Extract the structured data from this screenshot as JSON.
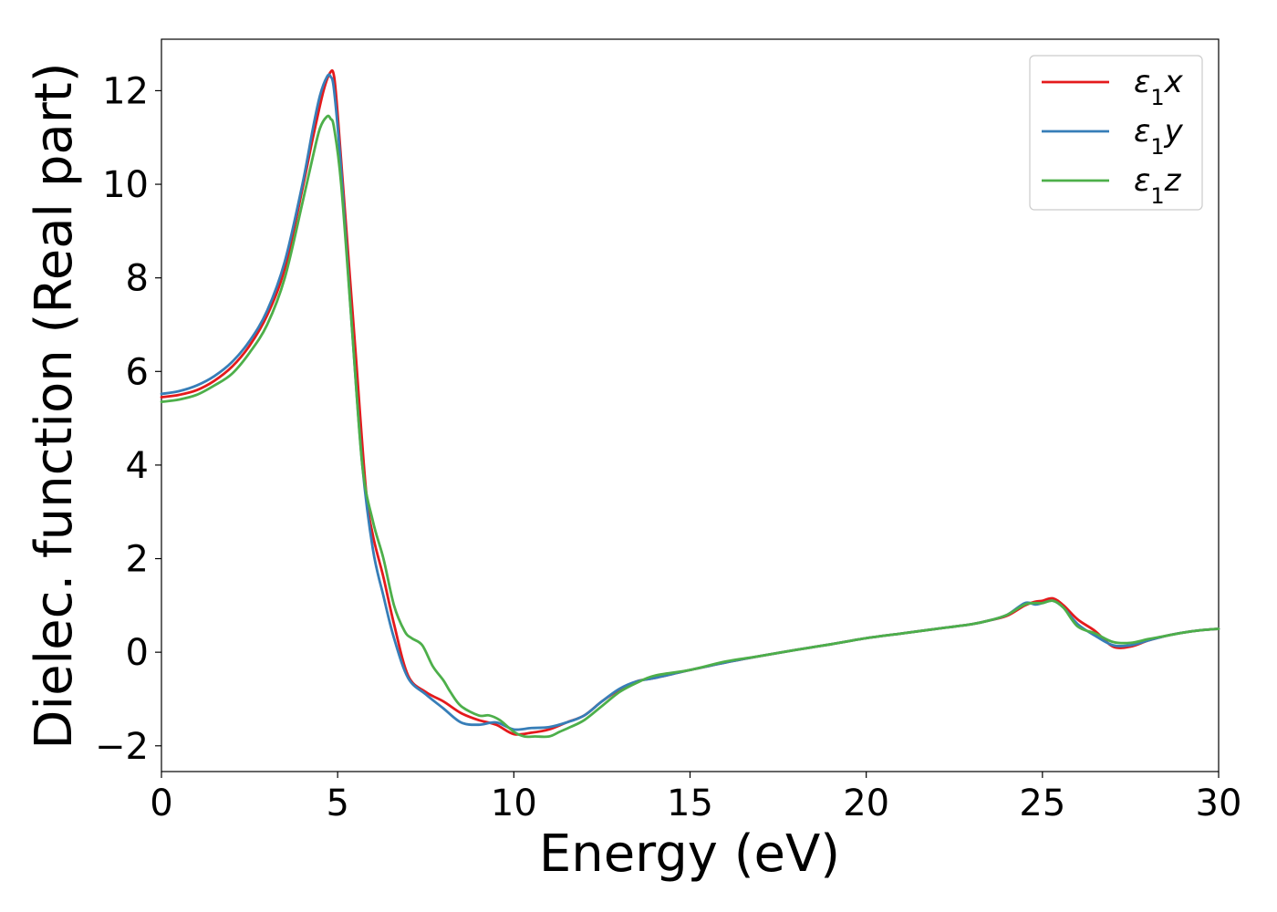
{
  "chart_data": {
    "type": "line",
    "xlabel": "Energy (eV)",
    "ylabel": "Dielec. function (Real part)",
    "xlim": [
      0,
      30
    ],
    "ylim": [
      -2.55,
      13.1
    ],
    "xticks": [
      0,
      5,
      10,
      15,
      20,
      25,
      30
    ],
    "yticks": [
      -2,
      0,
      2,
      4,
      6,
      8,
      10,
      12
    ],
    "xtick_labels": [
      "0",
      "5",
      "10",
      "15",
      "20",
      "25",
      "30"
    ],
    "ytick_labels": [
      "−2",
      "0",
      "2",
      "4",
      "6",
      "8",
      "10",
      "12"
    ],
    "grid": false,
    "legend_position": "top-right",
    "series": [
      {
        "name": "ε1x",
        "legend": {
          "base": "ε",
          "sub": "1",
          "suffix": "x"
        },
        "color": "#e41a1c",
        "x": [
          0,
          0.5,
          1,
          1.5,
          2,
          2.5,
          3,
          3.5,
          4,
          4.3,
          4.6,
          4.8,
          4.9,
          5.0,
          5.2,
          5.5,
          5.8,
          6.0,
          6.3,
          6.6,
          7.0,
          7.5,
          8.0,
          8.5,
          9.0,
          9.5,
          10.0,
          10.5,
          11.0,
          11.5,
          12.0,
          12.5,
          13.0,
          13.5,
          14.0,
          15.0,
          16.0,
          17.0,
          18.0,
          19.0,
          20.0,
          21.0,
          22.0,
          23.0,
          23.5,
          24.0,
          24.5,
          24.8,
          25.0,
          25.3,
          25.6,
          26.0,
          26.5,
          27.0,
          27.5,
          28.0,
          28.5,
          29.0,
          29.5,
          30.0
        ],
        "values": [
          5.45,
          5.5,
          5.6,
          5.8,
          6.1,
          6.55,
          7.2,
          8.2,
          9.9,
          11.0,
          12.0,
          12.4,
          12.3,
          11.5,
          9.5,
          6.5,
          3.5,
          2.5,
          1.6,
          0.6,
          -0.5,
          -0.85,
          -1.05,
          -1.3,
          -1.45,
          -1.55,
          -1.75,
          -1.72,
          -1.65,
          -1.5,
          -1.35,
          -1.05,
          -0.8,
          -0.62,
          -0.55,
          -0.38,
          -0.22,
          -0.08,
          0.05,
          0.17,
          0.3,
          0.4,
          0.5,
          0.6,
          0.68,
          0.78,
          1.0,
          1.08,
          1.1,
          1.15,
          1.0,
          0.7,
          0.45,
          0.12,
          0.12,
          0.25,
          0.35,
          0.42,
          0.47,
          0.5
        ]
      },
      {
        "name": "ε1y",
        "legend": {
          "base": "ε",
          "sub": "1",
          "suffix": "y"
        },
        "color": "#377eb8",
        "x": [
          0,
          0.5,
          1,
          1.5,
          2,
          2.5,
          3,
          3.5,
          4,
          4.3,
          4.5,
          4.7,
          4.8,
          4.9,
          5.1,
          5.4,
          5.7,
          6.0,
          6.3,
          6.6,
          7.0,
          7.5,
          8.0,
          8.5,
          9.0,
          9.5,
          10.0,
          10.5,
          11.0,
          11.5,
          12.0,
          12.5,
          13.0,
          13.5,
          14.0,
          15.0,
          16.0,
          17.0,
          18.0,
          19.0,
          20.0,
          21.0,
          22.0,
          23.0,
          23.5,
          24.0,
          24.5,
          24.8,
          25.0,
          25.3,
          25.6,
          26.0,
          26.5,
          27.0,
          27.5,
          28.0,
          28.5,
          29.0,
          29.5,
          30.0
        ],
        "values": [
          5.52,
          5.58,
          5.7,
          5.9,
          6.2,
          6.65,
          7.3,
          8.35,
          10.0,
          11.2,
          11.9,
          12.3,
          12.3,
          12.0,
          10.3,
          7.0,
          4.0,
          2.2,
          1.2,
          0.3,
          -0.55,
          -0.9,
          -1.2,
          -1.5,
          -1.55,
          -1.5,
          -1.65,
          -1.62,
          -1.6,
          -1.5,
          -1.35,
          -1.05,
          -0.78,
          -0.62,
          -0.55,
          -0.38,
          -0.22,
          -0.08,
          0.05,
          0.17,
          0.3,
          0.4,
          0.5,
          0.6,
          0.68,
          0.8,
          1.05,
          1.02,
          1.05,
          1.1,
          0.95,
          0.6,
          0.35,
          0.15,
          0.15,
          0.25,
          0.35,
          0.42,
          0.47,
          0.5
        ]
      },
      {
        "name": "ε1z",
        "legend": {
          "base": "ε",
          "sub": "1",
          "suffix": "z"
        },
        "color": "#4daf4a",
        "x": [
          0,
          0.5,
          1,
          1.5,
          2,
          2.5,
          3,
          3.5,
          4,
          4.3,
          4.5,
          4.7,
          4.8,
          4.9,
          5.1,
          5.4,
          5.7,
          6.0,
          6.3,
          6.6,
          6.9,
          7.1,
          7.4,
          7.7,
          8.0,
          8.2,
          8.5,
          9.0,
          9.3,
          9.6,
          10.0,
          10.3,
          10.6,
          11.0,
          11.3,
          11.6,
          12.0,
          12.5,
          13.0,
          13.5,
          14.0,
          15.0,
          16.0,
          17.0,
          18.0,
          19.0,
          20.0,
          21.0,
          22.0,
          23.0,
          23.5,
          24.0,
          24.5,
          24.8,
          25.0,
          25.3,
          25.6,
          26.0,
          26.5,
          27.0,
          27.5,
          28.0,
          28.5,
          29.0,
          29.5,
          30.0
        ],
        "values": [
          5.35,
          5.4,
          5.5,
          5.7,
          5.95,
          6.4,
          7.0,
          8.0,
          9.6,
          10.6,
          11.2,
          11.45,
          11.4,
          11.2,
          10.0,
          7.0,
          4.0,
          2.8,
          2.0,
          1.0,
          0.45,
          0.3,
          0.15,
          -0.3,
          -0.6,
          -0.85,
          -1.15,
          -1.35,
          -1.35,
          -1.45,
          -1.7,
          -1.8,
          -1.8,
          -1.8,
          -1.7,
          -1.6,
          -1.45,
          -1.15,
          -0.85,
          -0.65,
          -0.5,
          -0.38,
          -0.2,
          -0.08,
          0.05,
          0.17,
          0.3,
          0.4,
          0.5,
          0.6,
          0.68,
          0.8,
          1.02,
          1.05,
          1.05,
          1.1,
          0.95,
          0.55,
          0.4,
          0.22,
          0.2,
          0.28,
          0.35,
          0.42,
          0.47,
          0.5
        ]
      }
    ]
  }
}
